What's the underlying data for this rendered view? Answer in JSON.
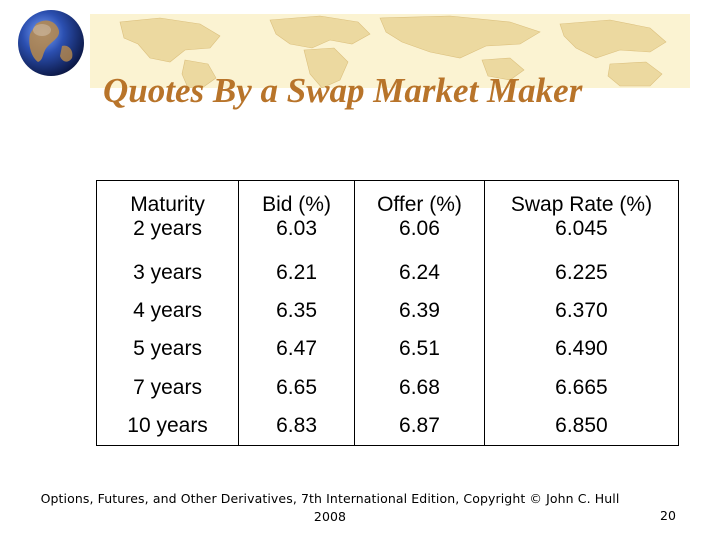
{
  "slide": {
    "title": "Quotes By a Swap Market Maker",
    "table": {
      "headers": [
        "Maturity",
        "Bid (%)",
        "Offer (%)",
        "Swap Rate (%)"
      ],
      "rows": [
        [
          "2 years",
          "6.03",
          "6.06",
          "6.045"
        ],
        [
          "3 years",
          "6.21",
          "6.24",
          "6.225"
        ],
        [
          "4 years",
          "6.35",
          "6.39",
          "6.370"
        ],
        [
          "5 years",
          "6.47",
          "6.51",
          "6.490"
        ],
        [
          "7 years",
          "6.65",
          "6.68",
          "6.665"
        ],
        [
          "10 years",
          "6.83",
          "6.87",
          "6.850"
        ]
      ]
    },
    "footer_line1": "Options, Futures, and Other Derivatives, 7th International Edition, Copyright © John C. Hull",
    "footer_line2": "2008",
    "page_number": "20"
  },
  "colors": {
    "title": "#b8742a",
    "banner": "#fbf3d2",
    "map": "#ecd9a0",
    "globe_ocean": "#1d3a8a"
  },
  "icons": {
    "globe": "globe-icon",
    "banner": "world-map-banner"
  }
}
